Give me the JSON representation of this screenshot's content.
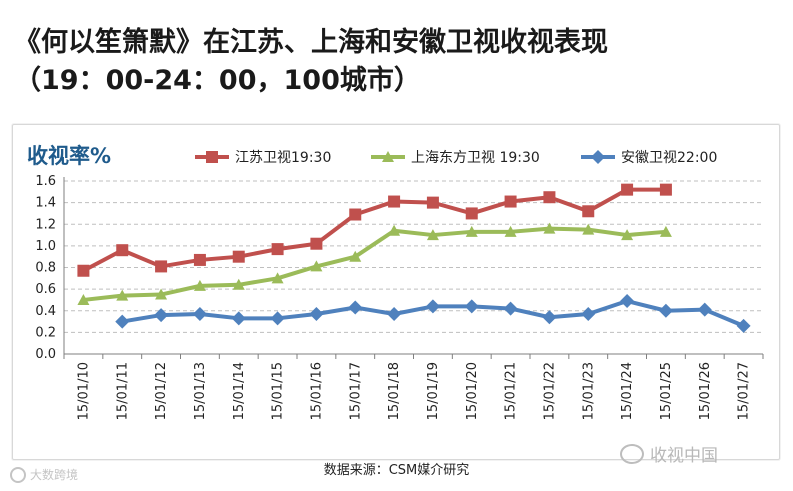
{
  "title": {
    "line1": "《何以笙箫默》在江苏、上海和安徽卫视收视表现",
    "line2": "（19：00-24：00，100城市）"
  },
  "source": "数据来源：CSM媒介研究",
  "watermark_right": "收视中国",
  "watermark_left": "大数跨境",
  "colors": {
    "jiangsu": "#c0504d",
    "shanghai": "#9bbb59",
    "anhui": "#4f81bd",
    "ylabel": "#1f5b8c",
    "grid": "#bfbfbf"
  },
  "chart_data": {
    "type": "line",
    "title": "",
    "ylabel": "收视率%",
    "xlabel": "",
    "ylim": [
      0.0,
      1.6
    ],
    "yticks": [
      "0.0",
      "0.2",
      "0.4",
      "0.6",
      "0.8",
      "1.0",
      "1.2",
      "1.4",
      "1.6"
    ],
    "grid": "horizontal dashed",
    "legend_position": "top",
    "categories": [
      "15/01/10",
      "15/01/11",
      "15/01/12",
      "15/01/13",
      "15/01/14",
      "15/01/15",
      "15/01/16",
      "15/01/17",
      "15/01/18",
      "15/01/19",
      "15/01/20",
      "15/01/21",
      "15/01/22",
      "15/01/23",
      "15/01/24",
      "15/01/25",
      "15/01/26",
      "15/01/27"
    ],
    "series": [
      {
        "name": "江苏卫视19:30",
        "marker": "square",
        "color": "#c0504d",
        "values": [
          0.77,
          0.96,
          0.81,
          0.87,
          0.9,
          0.97,
          1.02,
          1.29,
          1.41,
          1.4,
          1.3,
          1.41,
          1.45,
          1.32,
          1.52,
          1.52,
          null,
          null
        ]
      },
      {
        "name": "上海东方卫视 19:30",
        "marker": "triangle",
        "color": "#9bbb59",
        "values": [
          0.5,
          0.54,
          0.55,
          0.63,
          0.64,
          0.7,
          0.81,
          0.9,
          1.14,
          1.1,
          1.13,
          1.13,
          1.16,
          1.15,
          1.1,
          1.13,
          null,
          null
        ]
      },
      {
        "name": "安徽卫视22:00",
        "marker": "diamond",
        "color": "#4f81bd",
        "values": [
          null,
          0.3,
          0.36,
          0.37,
          0.33,
          0.33,
          0.37,
          0.43,
          0.37,
          0.44,
          0.44,
          0.42,
          0.34,
          0.37,
          0.49,
          0.4,
          0.41,
          0.26
        ]
      }
    ]
  }
}
